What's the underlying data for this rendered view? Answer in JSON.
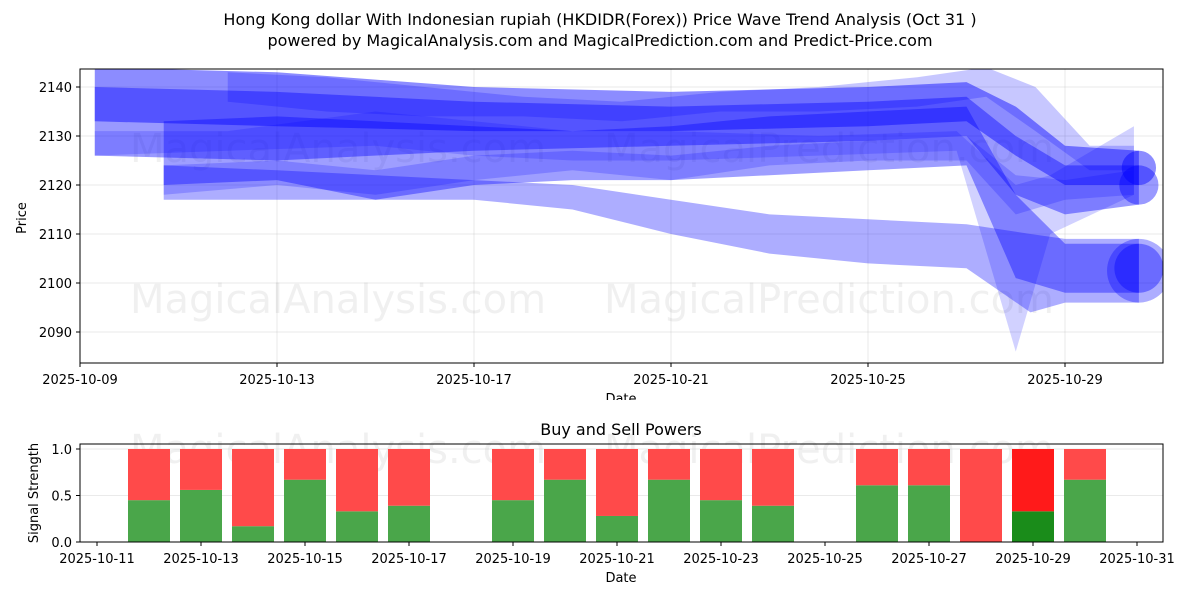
{
  "header": {
    "title_line1": "Hong Kong dollar With Indonesian rupiah (HKDIDR(Forex)) Price Wave Trend Analysis (Oct 31 )",
    "title_line2": "powered by MagicalAnalysis.com and MagicalPrediction.com and Predict-Price.com"
  },
  "watermarks": {
    "left": "MagicalAnalysis.com",
    "right": "MagicalPrediction.com"
  },
  "colors": {
    "wave_band": "#0000ff",
    "buy": "#4aa64a",
    "sell": "#ff4a4a",
    "buy_strong": "#1a8c1a",
    "sell_strong": "#ff1a1a"
  },
  "chart_data": [
    {
      "type": "area",
      "title": "Price Wave Trend Analysis",
      "xlabel": "Date",
      "ylabel": "Price",
      "ylim": [
        2083.5,
        2144
      ],
      "xlim": [
        "2025-10-09",
        "2025-10-31"
      ],
      "grid": true,
      "x_ticks": [
        "2025-10-09",
        "2025-10-13",
        "2025-10-17",
        "2025-10-21",
        "2025-10-25",
        "2025-10-29"
      ],
      "y_ticks": [
        2090,
        2100,
        2110,
        2120,
        2130,
        2140
      ],
      "series_description": "Multiple semi-transparent blue wave bands showing price trend projections",
      "bands": [
        {
          "x": [
            "2025-10-09.3",
            "2025-10-13",
            "2025-10-17",
            "2025-10-21",
            "2025-10-25",
            "2025-10-27",
            "2025-10-28",
            "2025-10-29",
            "2025-10-30.5"
          ],
          "upper": [
            2144,
            2143,
            2140,
            2139,
            2140,
            2141,
            2136,
            2128,
            2127
          ],
          "lower": [
            2133,
            2132,
            2131,
            2131,
            2132,
            2133,
            2126,
            2120,
            2120
          ]
        },
        {
          "x": [
            "2025-10-09.3",
            "2025-10-13",
            "2025-10-17",
            "2025-10-21",
            "2025-10-25",
            "2025-10-27",
            "2025-10-28",
            "2025-10-29",
            "2025-10-30.5"
          ],
          "upper": [
            2140,
            2139,
            2137,
            2136,
            2137,
            2138,
            2130,
            2124,
            2124
          ],
          "lower": [
            2126,
            2125,
            2127,
            2128,
            2129,
            2130,
            2118,
            2114,
            2116
          ]
        },
        {
          "x": [
            "2025-10-10.7",
            "2025-10-13",
            "2025-10-17",
            "2025-10-19",
            "2025-10-21",
            "2025-10-23",
            "2025-10-25",
            "2025-10-27",
            "2025-10-28.3",
            "2025-10-29",
            "2025-10-30.5"
          ],
          "upper": [
            2124,
            2123,
            2121,
            2120,
            2117,
            2114,
            2113,
            2112,
            2110,
            2109,
            2109
          ],
          "lower": [
            2117,
            2117,
            2117,
            2115,
            2110,
            2106,
            2104,
            2103,
            2094,
            2096,
            2096
          ]
        },
        {
          "x": [
            "2025-10-10.7",
            "2025-10-13",
            "2025-10-15",
            "2025-10-17",
            "2025-10-19",
            "2025-10-21",
            "2025-10-23",
            "2025-10-25",
            "2025-10-27",
            "2025-10-28",
            "2025-10-29",
            "2025-10-30.5"
          ],
          "upper": [
            2133,
            2134,
            2133,
            2132,
            2131,
            2132,
            2134,
            2135,
            2136,
            2118,
            2108,
            2108
          ],
          "lower": [
            2120,
            2121,
            2117,
            2120,
            2121,
            2121,
            2122,
            2123,
            2124,
            2101,
            2098,
            2098
          ]
        }
      ]
    },
    {
      "type": "bar",
      "title": "Buy and Sell Powers",
      "xlabel": "Date",
      "ylabel": "Signal Strength",
      "ylim": [
        0,
        1.05
      ],
      "y_ticks": [
        0.0,
        0.5,
        1.0
      ],
      "x_ticks": [
        "2025-10-11",
        "2025-10-13",
        "2025-10-15",
        "2025-10-17",
        "2025-10-19",
        "2025-10-21",
        "2025-10-23",
        "2025-10-25",
        "2025-10-27",
        "2025-10-29",
        "2025-10-31"
      ],
      "grid": true,
      "stacked": true,
      "categories": [
        "2025-10-12",
        "2025-10-13",
        "2025-10-14",
        "2025-10-15",
        "2025-10-16",
        "2025-10-17",
        "2025-10-19",
        "2025-10-20",
        "2025-10-21",
        "2025-10-22",
        "2025-10-23",
        "2025-10-24",
        "2025-10-26",
        "2025-10-27",
        "2025-10-28",
        "2025-10-29",
        "2025-10-30"
      ],
      "series": [
        {
          "name": "Buy",
          "values": [
            0.45,
            0.56,
            0.17,
            0.67,
            0.33,
            0.39,
            0.45,
            0.67,
            0.28,
            0.67,
            0.45,
            0.39,
            0.61,
            0.61,
            0.0,
            0.33,
            0.67
          ]
        },
        {
          "name": "Sell",
          "values": [
            0.55,
            0.44,
            0.83,
            0.33,
            0.67,
            0.61,
            0.55,
            0.33,
            0.72,
            0.33,
            0.55,
            0.61,
            0.39,
            0.39,
            1.0,
            0.67,
            0.33
          ]
        }
      ],
      "highlighted_category": "2025-10-29"
    }
  ]
}
